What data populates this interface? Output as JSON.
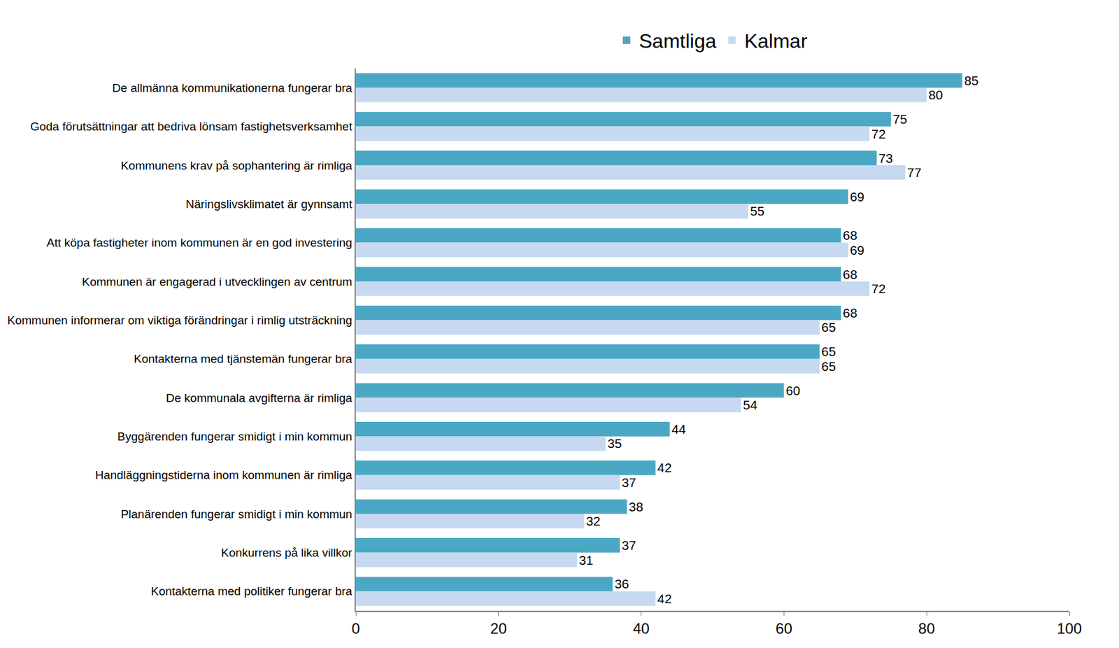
{
  "chart_data": {
    "type": "bar",
    "orientation": "horizontal",
    "categories": [
      "De allmänna kommunikationerna fungerar bra",
      "Goda förutsättningar att bedriva lönsam fastighetsverksamhet",
      "Kommunens krav på sophantering är rimliga",
      "Näringslivsklimatet är gynnsamt",
      "Att köpa fastigheter inom kommunen är en god investering",
      "Kommunen är engagerad i utvecklingen av centrum",
      "Kommunen informerar om viktiga förändringar i rimlig utsträckning",
      "Kontakterna med tjänstemän fungerar bra",
      "De kommunala avgifterna är rimliga",
      "Byggärenden fungerar smidigt i min kommun",
      "Handläggningstiderna inom kommunen är rimliga",
      "Planärenden fungerar smidigt i min kommun",
      "Konkurrens på lika villkor",
      "Kontakterna med politiker fungerar bra"
    ],
    "series": [
      {
        "name": "Samtliga",
        "color": "#4BA8C4",
        "values": [
          85,
          75,
          73,
          69,
          68,
          68,
          68,
          65,
          60,
          44,
          42,
          38,
          37,
          36
        ]
      },
      {
        "name": "Kalmar",
        "color": "#C6D9F1",
        "values": [
          80,
          72,
          77,
          55,
          69,
          72,
          65,
          65,
          54,
          35,
          37,
          32,
          31,
          42
        ]
      }
    ],
    "xlim": [
      0,
      100
    ],
    "xticks": [
      0,
      20,
      40,
      60,
      80,
      100
    ],
    "grid": false,
    "legend": "top",
    "data_labels": true
  }
}
